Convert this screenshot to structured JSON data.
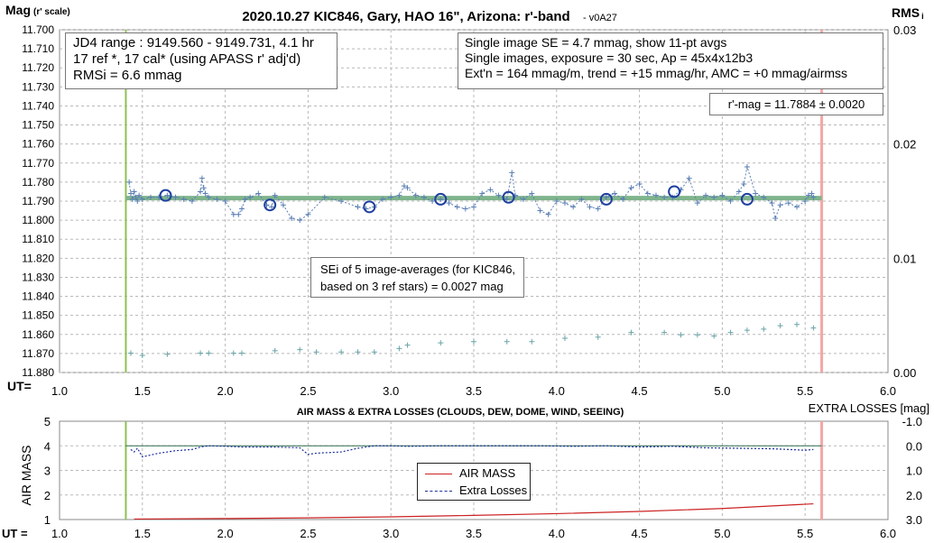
{
  "title_main": "2020.10.27 KIC846, Gary, HAO 16\", Arizona: r'-band",
  "title_version": "- v0A27",
  "top_chart": {
    "ylabel_main": "Mag",
    "ylabel_sub": "(r' scale)",
    "y2label_main": "RMS",
    "y2label_sub": "i",
    "ut_label": "UT=",
    "ylim": [
      11.7,
      11.88
    ],
    "yticks": [
      "11.700",
      "11.710",
      "11.720",
      "11.730",
      "11.740",
      "11.750",
      "11.760",
      "11.770",
      "11.780",
      "11.790",
      "11.800",
      "11.810",
      "11.820",
      "11.830",
      "11.840",
      "11.850",
      "11.860",
      "11.870",
      "11.880"
    ],
    "y2lim": [
      0,
      0.03
    ],
    "y2ticks": [
      "0.03",
      "0.02",
      "0.01",
      "0.00"
    ],
    "xlim": [
      1.0,
      6.0
    ],
    "xticks": [
      "1.0",
      "1.5",
      "2.0",
      "2.5",
      "3.0",
      "3.5",
      "4.0",
      "4.5",
      "5.0",
      "5.5",
      "6.0"
    ],
    "start_marker_ut": 1.4,
    "end_marker_ut": 5.6,
    "mean_mag": 11.7884,
    "colors": {
      "points": "#5a7fb4",
      "averages": "#1f3fa0",
      "mean": "#7fb48c",
      "rms": "#6aa4a8",
      "start": "#8cc152",
      "end": "#f4a6a6",
      "grid": "#b8b8b8"
    }
  },
  "info_box": {
    "line1": "JD4 range : 9149.560 - 9149.731,  4.1  hr",
    "line2": "17 ref *, 17 cal* (using APASS r' adj'd)",
    "line3": "RMSi = 6.6 mmag"
  },
  "single_box": {
    "line1": "Single image SE = 4.7 mmag, show  11-pt avgs",
    "line2": "Single images, exposure = 30 sec, Ap = 45x4x12b3",
    "line3": "Ext'n = 164 mmag/m, trend =  +15 mmag/hr, AMC = +0 mmag/airmss"
  },
  "mag_box": {
    "text": "r'-mag = 11.7884 ± 0.0020"
  },
  "sei_box": {
    "line1": "SEi of 5 image-averages (for KIC846,",
    "line2": "based on 3 ref stars) = 0.0027 mag"
  },
  "bottom_chart": {
    "title": "AIR MASS & EXTRA LOSSES (CLOUDS, DEW, DOME, WIND, SEEING)",
    "ylabel": "AIR MASS",
    "y2label": "EXTRA LOSSES [mag]",
    "ut_label": "UT =",
    "ylim": [
      1,
      5
    ],
    "yticks": [
      "5",
      "4",
      "3",
      "2",
      "1"
    ],
    "y2lim": [
      -1.0,
      3.0
    ],
    "y2ticks": [
      "-1.0",
      "0.0",
      "1.0",
      "2.0",
      "3.0"
    ],
    "xlim": [
      1.0,
      6.0
    ],
    "xticks": [
      "1.0",
      "1.5",
      "2.0",
      "2.5",
      "3.0",
      "3.5",
      "4.0",
      "4.5",
      "5.0",
      "5.5",
      "6.0"
    ],
    "legend": {
      "airmass": "AIR MASS",
      "losses": "Extra Losses"
    },
    "colors": {
      "airmass": "#cc2222",
      "losses": "#1f2f9f",
      "baseline": "#2f6f4f"
    }
  },
  "chart_data": [
    {
      "type": "scatter",
      "title": "2020.10.27 KIC846, Gary, HAO 16\", Arizona: r'-band",
      "xlabel": "UT",
      "ylabel": "Mag (r' scale)",
      "y2label": "RMSi",
      "xlim": [
        1.0,
        6.0
      ],
      "ylim": [
        11.88,
        11.7
      ],
      "y2lim": [
        0,
        0.03
      ],
      "grid": true,
      "series": [
        {
          "kind": "single-image points (dashed line)",
          "x": [
            1.42,
            1.43,
            1.44,
            1.45,
            1.46,
            1.47,
            1.48,
            1.5,
            1.55,
            1.6,
            1.65,
            1.7,
            1.75,
            1.8,
            1.85,
            1.86,
            1.87,
            1.88,
            1.9,
            1.95,
            2.0,
            2.05,
            2.08,
            2.1,
            2.12,
            2.15,
            2.2,
            2.25,
            2.28,
            2.3,
            2.35,
            2.4,
            2.45,
            2.5,
            2.6,
            2.7,
            2.8,
            2.85,
            2.9,
            2.95,
            3.0,
            3.05,
            3.08,
            3.1,
            3.15,
            3.2,
            3.25,
            3.3,
            3.35,
            3.4,
            3.45,
            3.5,
            3.55,
            3.6,
            3.65,
            3.7,
            3.73,
            3.75,
            3.8,
            3.85,
            3.9,
            3.95,
            4.0,
            4.05,
            4.1,
            4.15,
            4.2,
            4.25,
            4.3,
            4.35,
            4.4,
            4.45,
            4.5,
            4.55,
            4.6,
            4.65,
            4.7,
            4.75,
            4.8,
            4.85,
            4.9,
            4.95,
            5.0,
            5.05,
            5.1,
            5.13,
            5.15,
            5.2,
            5.25,
            5.3,
            5.32,
            5.35,
            5.4,
            5.45,
            5.5,
            5.52,
            5.54,
            5.55
          ],
          "y": [
            11.78,
            11.786,
            11.789,
            11.785,
            11.788,
            11.79,
            11.787,
            11.789,
            11.788,
            11.788,
            11.787,
            11.788,
            11.789,
            11.79,
            11.785,
            11.778,
            11.783,
            11.786,
            11.788,
            11.789,
            11.79,
            11.797,
            11.797,
            11.794,
            11.789,
            11.788,
            11.786,
            11.792,
            11.793,
            11.787,
            11.792,
            11.799,
            11.8,
            11.797,
            11.788,
            11.79,
            11.793,
            11.794,
            11.793,
            11.789,
            11.788,
            11.787,
            11.782,
            11.783,
            11.787,
            11.788,
            11.79,
            11.789,
            11.791,
            11.793,
            11.794,
            11.793,
            11.786,
            11.784,
            11.787,
            11.789,
            11.775,
            11.787,
            11.789,
            11.786,
            11.795,
            11.797,
            11.79,
            11.791,
            11.793,
            11.789,
            11.793,
            11.794,
            11.788,
            11.786,
            11.789,
            11.783,
            11.781,
            11.786,
            11.787,
            11.788,
            11.788,
            11.784,
            11.778,
            11.791,
            11.787,
            11.788,
            11.787,
            11.79,
            11.785,
            11.781,
            11.772,
            11.786,
            11.788,
            11.791,
            11.799,
            11.792,
            11.791,
            11.793,
            11.79,
            11.787,
            11.786,
            11.788
          ]
        },
        {
          "kind": "11-pt averages (circles)",
          "x": [
            1.64,
            2.27,
            2.87,
            3.3,
            3.71,
            4.3,
            4.71,
            5.15
          ],
          "y": [
            11.787,
            11.792,
            11.793,
            11.789,
            11.788,
            11.789,
            11.785,
            11.789
          ]
        },
        {
          "kind": "mean level",
          "x": [
            1.4,
            5.6
          ],
          "y": [
            11.7884,
            11.7884
          ]
        },
        {
          "kind": "RMSi (right axis)",
          "axis": "y2",
          "x": [
            1.43,
            1.5,
            1.65,
            1.85,
            1.9,
            2.05,
            2.1,
            2.3,
            2.45,
            2.55,
            2.7,
            2.8,
            2.9,
            3.05,
            3.1,
            3.3,
            3.5,
            3.7,
            3.85,
            4.05,
            4.25,
            4.45,
            4.65,
            4.75,
            4.85,
            4.95,
            5.05,
            5.15,
            5.25,
            5.35,
            5.45,
            5.55
          ],
          "y": [
            0.0017,
            0.0015,
            0.0016,
            0.0017,
            0.0017,
            0.0017,
            0.0017,
            0.0019,
            0.002,
            0.0018,
            0.0018,
            0.0018,
            0.0018,
            0.0021,
            0.0024,
            0.0026,
            0.0027,
            0.0027,
            0.0027,
            0.003,
            0.0031,
            0.0035,
            0.0035,
            0.0033,
            0.0033,
            0.0032,
            0.0035,
            0.0037,
            0.0038,
            0.0041,
            0.0042,
            0.0039
          ]
        }
      ]
    },
    {
      "type": "line",
      "title": "AIR MASS & EXTRA LOSSES (CLOUDS, DEW, DOME, WIND, SEEING)",
      "xlabel": "UT",
      "ylabel": "AIR MASS",
      "y2label": "EXTRA LOSSES [mag]",
      "xlim": [
        1.0,
        6.0
      ],
      "ylim": [
        1,
        5
      ],
      "y2lim": [
        3.0,
        -1.0
      ],
      "grid": true,
      "legend": "center",
      "series": [
        {
          "name": "AIR MASS",
          "x": [
            1.45,
            2.0,
            2.5,
            3.0,
            3.5,
            4.0,
            4.5,
            5.0,
            5.55
          ],
          "y": [
            1.02,
            1.04,
            1.07,
            1.11,
            1.17,
            1.24,
            1.33,
            1.45,
            1.64
          ]
        },
        {
          "name": "Extra Losses",
          "axis": "y2",
          "x": [
            1.43,
            1.45,
            1.47,
            1.5,
            1.6,
            1.7,
            1.8,
            1.85,
            1.9,
            2.0,
            2.1,
            2.3,
            2.45,
            2.5,
            2.55,
            2.7,
            2.8,
            2.9,
            3.0,
            3.1,
            3.3,
            3.5,
            3.7,
            3.9,
            4.1,
            4.3,
            4.5,
            4.7,
            4.9,
            5.1,
            5.3,
            5.5,
            5.55
          ],
          "y": [
            0.15,
            0.25,
            0.1,
            0.45,
            0.3,
            0.2,
            0.15,
            0.05,
            0.0,
            0.02,
            0.05,
            0.05,
            0.08,
            0.35,
            0.3,
            0.25,
            0.1,
            0.0,
            0.0,
            0.02,
            0.0,
            0.0,
            0.0,
            0.0,
            0.02,
            0.0,
            0.05,
            0.02,
            0.08,
            0.1,
            0.12,
            0.18,
            0.15
          ]
        }
      ]
    }
  ]
}
